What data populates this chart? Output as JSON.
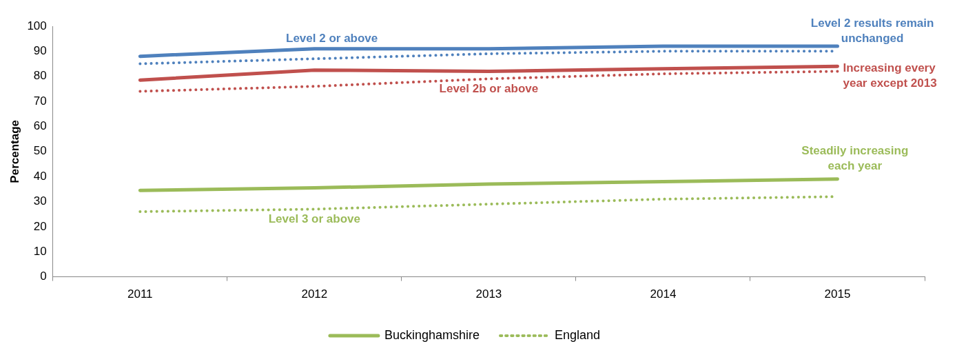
{
  "chart_data": {
    "type": "line",
    "ylabel": "Percentage",
    "categories": [
      "2011",
      "2012",
      "2013",
      "2014",
      "2015"
    ],
    "series": [
      {
        "color": "#4f81bd",
        "line_style": "solid",
        "values": [
          88,
          91,
          91,
          92,
          92
        ]
      },
      {
        "color": "#4f81bd",
        "line_style": "dotted",
        "values": [
          85,
          87,
          89,
          90,
          90
        ]
      },
      {
        "color": "#c0504d",
        "line_style": "solid",
        "values": [
          78.5,
          82.5,
          82,
          83,
          84
        ]
      },
      {
        "color": "#c0504d",
        "line_style": "dotted",
        "values": [
          74,
          76,
          79,
          81,
          82
        ]
      },
      {
        "name": "Buckinghamshire",
        "color": "#9bbb59",
        "line_style": "solid",
        "values": [
          34.5,
          35.5,
          37,
          38,
          39
        ]
      },
      {
        "name": "England",
        "color": "#9bbb59",
        "line_style": "dotted",
        "values": [
          26,
          27,
          29,
          31,
          32
        ]
      }
    ],
    "ylim": [
      0,
      100
    ],
    "yticks": [
      0,
      10,
      20,
      30,
      40,
      50,
      60,
      70,
      80,
      90,
      100
    ],
    "legend": "bottom",
    "marker": "none",
    "annotations": [
      "Level 2 or above",
      "Level 2 results remain unchanged",
      "Increasing every year except 2013",
      "Level 2b or above",
      "Steadily increasing each year",
      "Level 3 or above"
    ]
  }
}
